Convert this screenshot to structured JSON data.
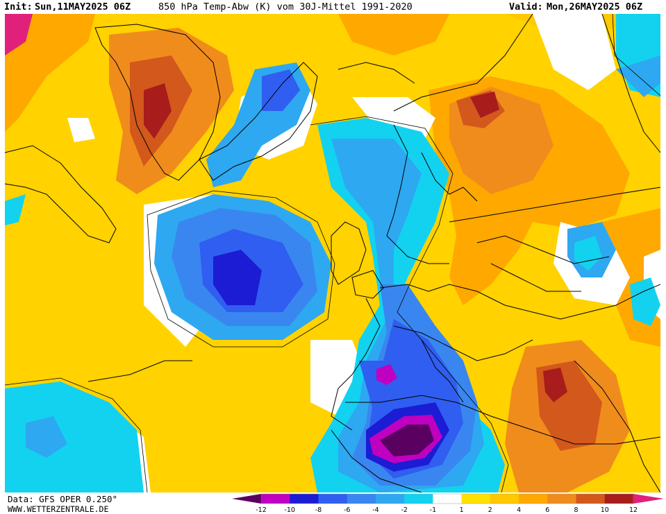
{
  "header": {
    "init_label": "Init:",
    "init_value": "Sun,11MAY2025 06Z",
    "title": "850 hPa Temp-Abw (K) vom 30J-Mittel 1991-2020",
    "valid_label": "Valid:",
    "valid_value": "Mon,26MAY2025 06Z"
  },
  "footer": {
    "source_line": "Data: GFS OPER 0.250°",
    "website": "WWW.WETTERZENTRALE.DE"
  },
  "colorbar": {
    "unit": "K",
    "labels": [
      "-12",
      "-10",
      "-8",
      "-6",
      "-4",
      "-2",
      "-1",
      "1",
      "2",
      "4",
      "6",
      "8",
      "10",
      "12"
    ],
    "low_end_color": "#5a0060",
    "high_end_color": "#e0207a",
    "bins": [
      {
        "color": "#c000c0"
      },
      {
        "color": "#1c1cd4"
      },
      {
        "color": "#2f5ef0"
      },
      {
        "color": "#3a86f0"
      },
      {
        "color": "#2ea8f0"
      },
      {
        "color": "#12d2f0"
      },
      {
        "color": "#ffffff"
      },
      {
        "color": "#ffe100"
      },
      {
        "color": "#ffc800"
      },
      {
        "color": "#ffa800"
      },
      {
        "color": "#f08c1c"
      },
      {
        "color": "#d2581c"
      },
      {
        "color": "#a81c1c"
      }
    ]
  },
  "colors": {
    "background": "#ffd200",
    "coastline": "#000000",
    "neutral": "#ffffff"
  }
}
